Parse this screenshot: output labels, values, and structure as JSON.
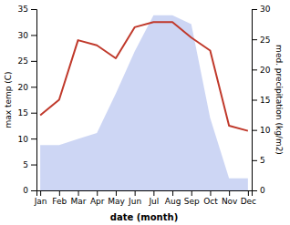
{
  "chart_data": {
    "type": "line",
    "categories": [
      "Jan",
      "Feb",
      "Mar",
      "Apr",
      "May",
      "Jun",
      "Jul",
      "Aug",
      "Sep",
      "Oct",
      "Nov",
      "Dec"
    ],
    "xlabel": "date (month)",
    "ylabel": "max temp (C)",
    "y2label": "med. precipitation (kg/m2)",
    "series": [
      {
        "type": "area",
        "axis": "y2",
        "color": "#b8c5f0",
        "values": [
          7.5,
          7.5,
          8.5,
          9.5,
          16.0,
          23.0,
          29.0,
          29.0,
          27.5,
          12.0,
          2.0,
          2.0
        ]
      },
      {
        "type": "line",
        "color": "#c0392b",
        "values": [
          14.5,
          17.5,
          29.0,
          28.0,
          25.5,
          31.5,
          32.5,
          32.5,
          29.5,
          27.0,
          12.5,
          11.5
        ]
      }
    ],
    "ylim": [
      0,
      35
    ],
    "yticks": [
      0,
      5,
      10,
      15,
      20,
      25,
      30,
      35
    ],
    "y2lim": [
      0,
      30
    ],
    "y2ticks": [
      0,
      5,
      10,
      15,
      20,
      25,
      30
    ],
    "grid": false
  }
}
